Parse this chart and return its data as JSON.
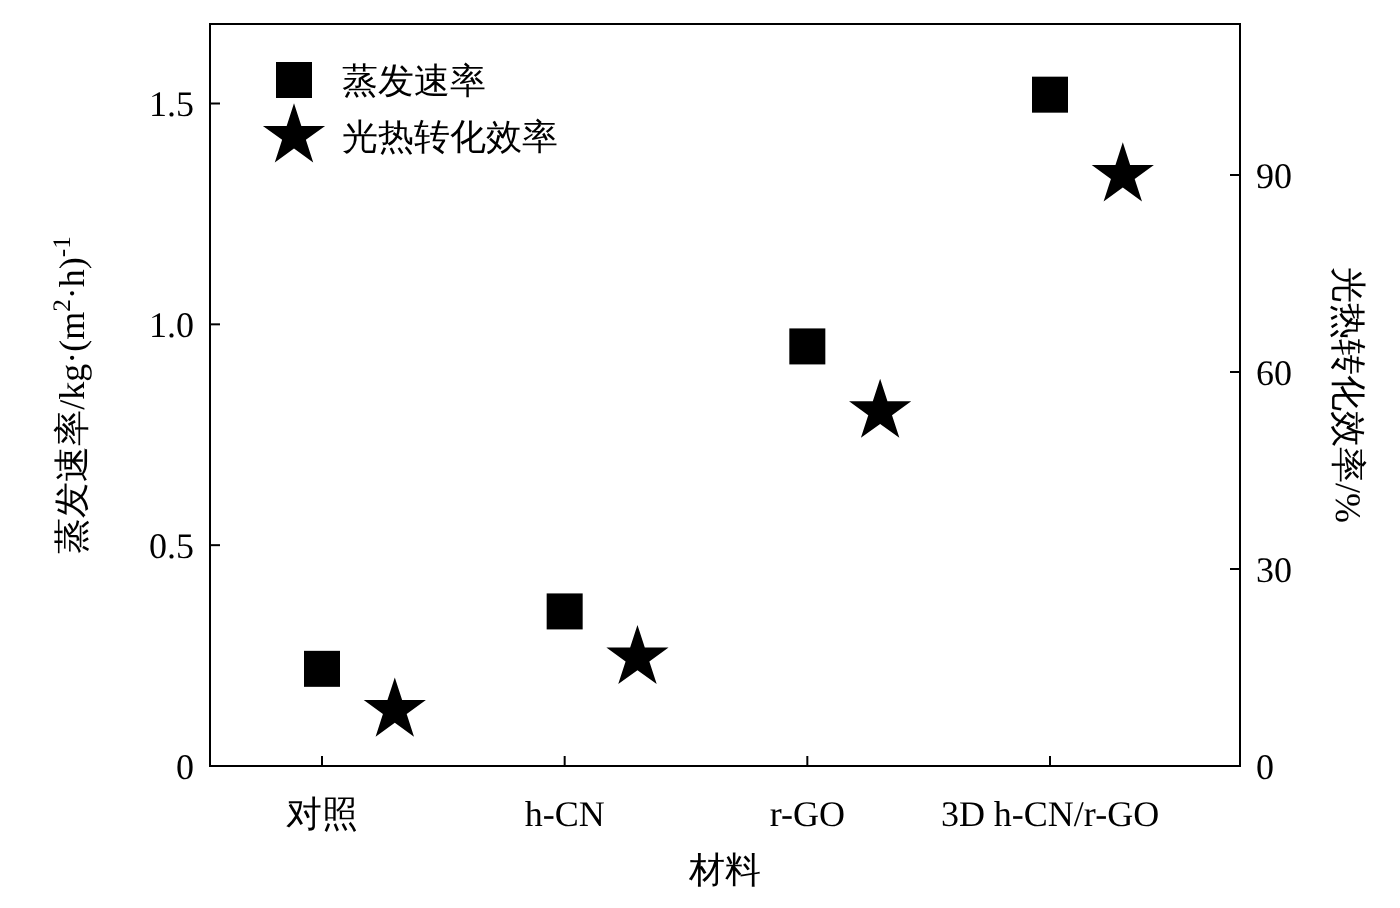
{
  "chart_data": {
    "type": "scatter",
    "xlabel": "材料",
    "ylabel": "蒸发速率/kg·(m$^{2}$·h)$^{-1}$",
    "y2label": "光热转化效率/%",
    "categories": [
      "对照",
      "h-CN",
      "r-GO",
      "3D h-CN/r-GO"
    ],
    "series": [
      {
        "name": "蒸发速率",
        "color": "#000000",
        "marker": "square",
        "values": [
          0.22,
          0.35,
          0.95,
          1.52
        ]
      },
      {
        "name": "光热转化效率",
        "color": "#000000",
        "marker": "star",
        "axis": "y2",
        "values": [
          8.5,
          16.5,
          54,
          90
        ]
      }
    ],
    "ylim": [
      0,
      1.68
    ],
    "yticks": [
      {
        "value": 0,
        "label": "0"
      },
      0.5,
      {
        "value": 1,
        "label": "1.0"
      },
      1.5
    ],
    "y2lim": [
      0,
      113
    ],
    "y2ticks": [
      0,
      30,
      60,
      90
    ],
    "legend": "top left",
    "grid": false
  }
}
